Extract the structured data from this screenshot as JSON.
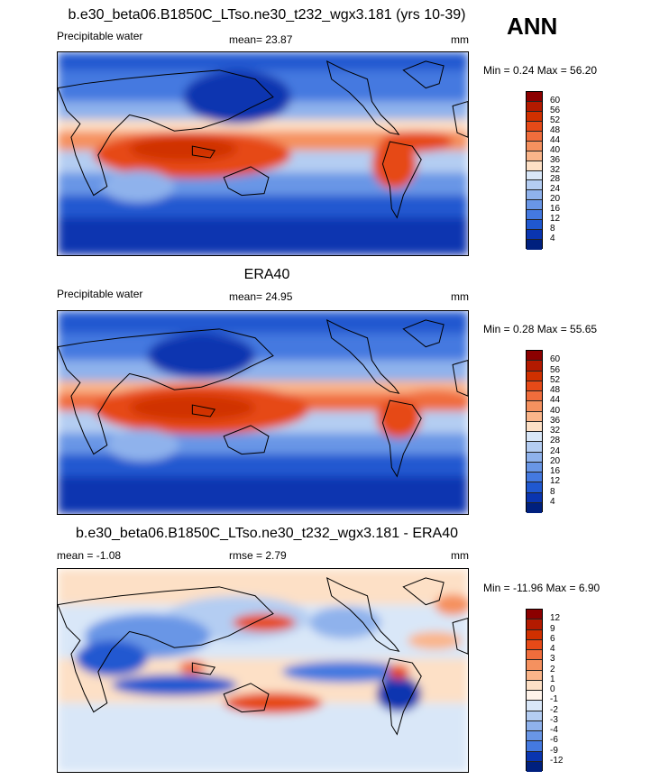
{
  "season": "ANN",
  "panels": [
    {
      "title": "b.e30_beta06.B1850C_LTso.ne30_t232_wgx3.181 (yrs 10-39)",
      "left_label": "Precipitable water",
      "center_label": "mean=  23.87",
      "units": "mm",
      "minmax": "Min =   0.24 Max =  56.20",
      "levels": [
        "60",
        "56",
        "52",
        "48",
        "44",
        "40",
        "36",
        "32",
        "28",
        "24",
        "20",
        "16",
        "12",
        "8",
        "4"
      ],
      "colors": [
        "#8b0000",
        "#b31a00",
        "#d03000",
        "#e64a18",
        "#f06d3c",
        "#f5915f",
        "#fab58a",
        "#fde0c6",
        "#d9e7f8",
        "#b4cdf2",
        "#8fb2ec",
        "#6996e6",
        "#4479e0",
        "#2058d0",
        "#0a35b0",
        "#00207e"
      ]
    },
    {
      "title": "ERA40",
      "left_label": "Precipitable water",
      "center_label": "mean=  24.95",
      "units": "mm",
      "minmax": "Min =   0.28 Max =  55.65",
      "levels": [
        "60",
        "56",
        "52",
        "48",
        "44",
        "40",
        "36",
        "32",
        "28",
        "24",
        "20",
        "16",
        "12",
        "8",
        "4"
      ],
      "colors": [
        "#8b0000",
        "#b31a00",
        "#d03000",
        "#e64a18",
        "#f06d3c",
        "#f5915f",
        "#fab58a",
        "#fde0c6",
        "#d9e7f8",
        "#b4cdf2",
        "#8fb2ec",
        "#6996e6",
        "#4479e0",
        "#2058d0",
        "#0a35b0",
        "#00207e"
      ]
    },
    {
      "title": "b.e30_beta06.B1850C_LTso.ne30_t232_wgx3.181 - ERA40",
      "left_label": "mean =  -1.08",
      "center_label": "rmse =   2.79",
      "units": "mm",
      "minmax": "Min = -11.96 Max =   6.90",
      "levels": [
        "12",
        "9",
        "6",
        "4",
        "3",
        "2",
        "1",
        "0",
        "-1",
        "-2",
        "-3",
        "-4",
        "-6",
        "-9",
        "-12"
      ],
      "colors": [
        "#8b0000",
        "#b31a00",
        "#d03000",
        "#e64a18",
        "#f06d3c",
        "#f5915f",
        "#fab58a",
        "#fde0c6",
        "#fef3ea",
        "#d9e7f8",
        "#b4cdf2",
        "#8fb2ec",
        "#6996e6",
        "#4479e0",
        "#0a35b0",
        "#00207e"
      ]
    }
  ]
}
